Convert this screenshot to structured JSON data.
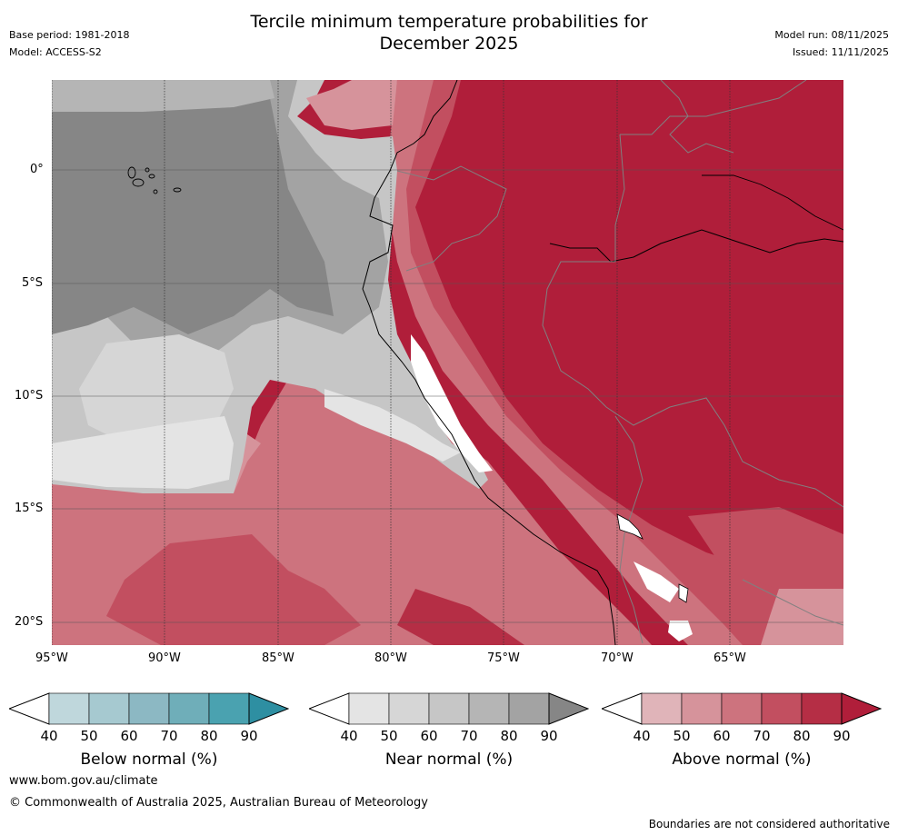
{
  "title": {
    "line1": "Tercile minimum temperature probabilities for",
    "line2": "December 2025"
  },
  "header_left": {
    "base_period": "Base period: 1981-2018",
    "model": "Model: ACCESS-S2"
  },
  "header_right": {
    "model_run": "Model run: 08/11/2025",
    "issued": "Issued: 11/11/2025"
  },
  "map": {
    "lat_ticks": [
      "0°",
      "5°S",
      "10°S",
      "15°S",
      "20°S"
    ],
    "lon_ticks": [
      "95°W",
      "90°W",
      "85°W",
      "80°W",
      "75°W",
      "70°W",
      "65°W"
    ]
  },
  "colorbars": [
    {
      "label": "Below normal (%)",
      "ticks": [
        "40",
        "50",
        "60",
        "70",
        "80",
        "90"
      ],
      "colors": [
        "#bfd7dc",
        "#a6c9d0",
        "#8cb8c3",
        "#6faeb9",
        "#4aa2b0",
        "#2e8fa2"
      ]
    },
    {
      "label": "Near normal (%)",
      "ticks": [
        "40",
        "50",
        "60",
        "70",
        "80",
        "90"
      ],
      "colors": [
        "#e4e4e4",
        "#d6d6d6",
        "#c6c6c6",
        "#b5b5b5",
        "#a3a3a3",
        "#868686"
      ]
    },
    {
      "label": "Above normal (%)",
      "ticks": [
        "40",
        "50",
        "60",
        "70",
        "80",
        "90"
      ],
      "colors": [
        "#e0b4b9",
        "#d6939b",
        "#cd737e",
        "#c24f60",
        "#b52e45",
        "#b01e3a"
      ]
    }
  ],
  "footer": {
    "url": "www.bom.gov.au/climate",
    "copyright": "© Commonwealth of Australia 2025, Australian Bureau of Meteorology",
    "disclaimer": "Boundaries are not considered authoritative"
  }
}
